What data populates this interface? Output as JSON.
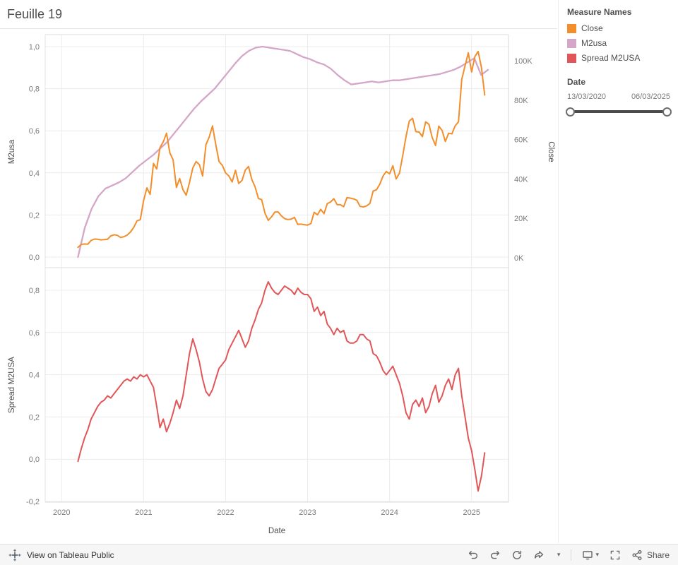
{
  "title": "Feuille 19",
  "legend": {
    "title": "Measure Names",
    "items": [
      {
        "label": "Close",
        "color": "#f28e2b"
      },
      {
        "label": "M2usa",
        "color": "#d4a6c8"
      },
      {
        "label": "Spread M2USA",
        "color": "#e15759"
      }
    ]
  },
  "date_filter": {
    "title": "Date",
    "start": "13/03/2020",
    "end": "06/03/2025"
  },
  "toolbar": {
    "link": "View on Tableau Public",
    "share": "Share",
    "icons": [
      "undo",
      "redo",
      "revert",
      "forward",
      "device-preview",
      "fullscreen",
      "share"
    ]
  },
  "chart_data": [
    {
      "type": "line",
      "title": "",
      "x_axis": {
        "label": "Date",
        "tick_values": [
          2020,
          2021,
          2022,
          2023,
          2024,
          2025
        ],
        "tick_labels": [
          "2020",
          "2021",
          "2022",
          "2023",
          "2024",
          "2025"
        ],
        "range": [
          2019.8,
          2025.45
        ]
      },
      "left_axis": {
        "label": "M2usa",
        "tick_values": [
          0,
          0.2,
          0.4,
          0.6,
          0.8,
          1
        ],
        "tick_labels": [
          "0,0",
          "0,2",
          "0,4",
          "0,6",
          "0,8",
          "1,0"
        ],
        "range": [
          0,
          1
        ]
      },
      "right_axis": {
        "label": "Close",
        "tick_values": [
          0,
          20,
          40,
          60,
          80,
          100
        ],
        "tick_labels": [
          "0K",
          "20K",
          "40K",
          "60K",
          "80K",
          "100K"
        ],
        "range": [
          0,
          107
        ]
      },
      "series": [
        {
          "name": "M2usa",
          "axis": "left",
          "color": "#d4a6c8",
          "width": 2.3,
          "t0": 2020.2,
          "dt": 0.08333,
          "values": [
            0.0,
            0.14,
            0.23,
            0.29,
            0.325,
            0.34,
            0.355,
            0.375,
            0.405,
            0.435,
            0.46,
            0.485,
            0.515,
            0.545,
            0.585,
            0.625,
            0.665,
            0.705,
            0.74,
            0.77,
            0.8,
            0.84,
            0.88,
            0.92,
            0.955,
            0.98,
            0.995,
            1.0,
            0.995,
            0.99,
            0.985,
            0.98,
            0.965,
            0.95,
            0.94,
            0.925,
            0.915,
            0.895,
            0.865,
            0.84,
            0.82,
            0.825,
            0.83,
            0.835,
            0.83,
            0.835,
            0.84,
            0.84,
            0.845,
            0.85,
            0.855,
            0.86,
            0.865,
            0.87,
            0.88,
            0.89,
            0.905,
            0.925,
            0.945,
            0.865,
            0.89
          ]
        },
        {
          "name": "Close",
          "axis": "right",
          "color": "#f28e2b",
          "width": 2,
          "t0": 2020.2,
          "dt": 0.04,
          "values": [
            5.3,
            6.8,
            7.0,
            6.9,
            8.8,
            9.5,
            9.4,
            9.1,
            9.2,
            9.4,
            11.1,
            11.7,
            11.4,
            10.3,
            10.7,
            11.5,
            13.1,
            15.5,
            18.7,
            19.4,
            29.0,
            35.5,
            32.2,
            47.9,
            45.1,
            55.9,
            58.9,
            63.2,
            53.2,
            49.7,
            35.7,
            40.2,
            34.5,
            31.8,
            38.2,
            45.6,
            48.8,
            47.3,
            41.5,
            57.4,
            61.3,
            66.9,
            57.5,
            48.9,
            46.9,
            43.1,
            41.5,
            38.5,
            44.4,
            37.7,
            39.3,
            44.5,
            46.3,
            39.7,
            36.0,
            30.1,
            29.5,
            22.6,
            19.0,
            20.8,
            23.2,
            23.3,
            21.3,
            19.9,
            19.4,
            19.6,
            20.5,
            16.9,
            17.1,
            16.8,
            16.6,
            17.4,
            23.1,
            21.8,
            24.6,
            22.4,
            27.5,
            28.3,
            30.0,
            27.0,
            26.9,
            25.9,
            30.5,
            30.3,
            29.9,
            29.2,
            26.1,
            25.8,
            26.3,
            27.6,
            33.9,
            34.5,
            37.3,
            41.5,
            43.8,
            42.6,
            46.7,
            40.0,
            42.9,
            51.8,
            61.5,
            69.4,
            70.8,
            64.0,
            63.8,
            61.5,
            69.0,
            67.7,
            61.0,
            57.0,
            66.8,
            64.6,
            59.0,
            63.2,
            62.9,
            67.0,
            69.0,
            90.5,
            97.5,
            104.0,
            94.3,
            102.1,
            104.7,
            96.6,
            82.6
          ]
        }
      ]
    },
    {
      "type": "line",
      "title": "",
      "y_axis": {
        "label": "Spread M2USA",
        "tick_values": [
          -0.2,
          0,
          0.2,
          0.4,
          0.6,
          0.8
        ],
        "tick_labels": [
          "-0,2",
          "0,0",
          "0,2",
          "0,4",
          "0,6",
          "0,8"
        ],
        "range": [
          -0.2,
          0.85
        ]
      },
      "series": [
        {
          "name": "Spread M2USA",
          "color": "#e15759",
          "width": 2,
          "t0": 2020.2,
          "dt": 0.04,
          "values": [
            -0.01,
            0.05,
            0.1,
            0.14,
            0.19,
            0.22,
            0.25,
            0.27,
            0.28,
            0.3,
            0.29,
            0.31,
            0.33,
            0.35,
            0.37,
            0.38,
            0.37,
            0.39,
            0.38,
            0.4,
            0.39,
            0.4,
            0.37,
            0.34,
            0.25,
            0.15,
            0.19,
            0.13,
            0.17,
            0.22,
            0.28,
            0.24,
            0.3,
            0.4,
            0.5,
            0.57,
            0.52,
            0.46,
            0.38,
            0.32,
            0.3,
            0.33,
            0.38,
            0.43,
            0.45,
            0.47,
            0.52,
            0.55,
            0.58,
            0.61,
            0.57,
            0.53,
            0.56,
            0.62,
            0.66,
            0.71,
            0.74,
            0.8,
            0.84,
            0.81,
            0.79,
            0.78,
            0.8,
            0.82,
            0.81,
            0.8,
            0.78,
            0.81,
            0.79,
            0.78,
            0.78,
            0.76,
            0.7,
            0.72,
            0.68,
            0.7,
            0.64,
            0.62,
            0.59,
            0.62,
            0.6,
            0.61,
            0.56,
            0.55,
            0.55,
            0.56,
            0.59,
            0.59,
            0.57,
            0.56,
            0.5,
            0.49,
            0.46,
            0.42,
            0.4,
            0.42,
            0.44,
            0.4,
            0.36,
            0.3,
            0.22,
            0.19,
            0.26,
            0.28,
            0.25,
            0.29,
            0.22,
            0.25,
            0.31,
            0.35,
            0.27,
            0.3,
            0.35,
            0.38,
            0.33,
            0.4,
            0.43,
            0.3,
            0.2,
            0.1,
            0.04,
            -0.05,
            -0.15,
            -0.08,
            0.03
          ]
        }
      ]
    }
  ]
}
